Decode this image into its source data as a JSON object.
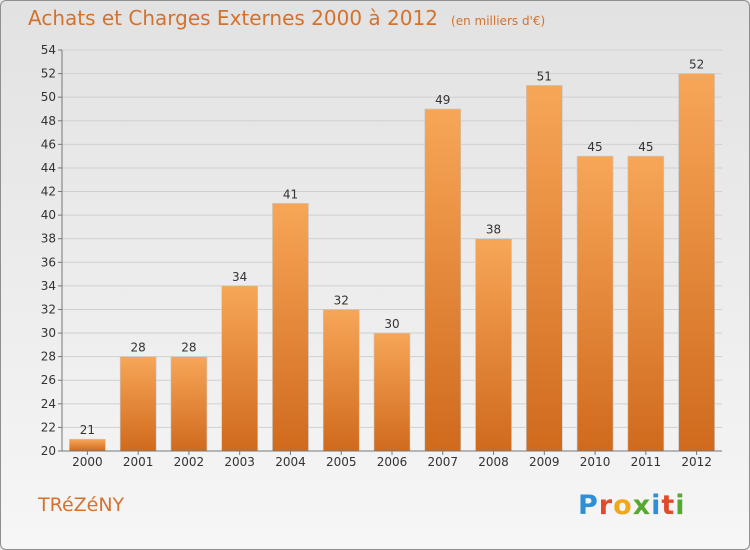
{
  "header": {
    "title": "Achats et Charges Externes 2000 à 2012",
    "unit": "(en milliers d'€)"
  },
  "footer": {
    "commune": "TRéZéNY",
    "brand": "Proxiti",
    "brand_colors": [
      "#2f8fd6",
      "#e14a2a",
      "#f0a818",
      "#57a832",
      "#2f8fd6",
      "#e14a2a",
      "#57a832"
    ]
  },
  "colors": {
    "accent": "#d4722c",
    "bar_top": "#f7a658",
    "bar_bottom": "#d06a1d",
    "grid": "#d0d0d0",
    "axis": "#777777"
  },
  "chart_data": {
    "type": "bar",
    "title": "Achats et Charges Externes 2000 à 2012",
    "subtitle": "(en milliers d'€)",
    "xlabel": "",
    "ylabel": "",
    "categories": [
      "2000",
      "2001",
      "2002",
      "2003",
      "2004",
      "2005",
      "2006",
      "2007",
      "2008",
      "2009",
      "2010",
      "2011",
      "2012"
    ],
    "values": [
      21,
      28,
      28,
      34,
      41,
      32,
      30,
      49,
      38,
      51,
      45,
      45,
      52
    ],
    "data_labels": [
      "21",
      "28",
      "28",
      "34",
      "41",
      "32",
      "30",
      "49",
      "38",
      "51",
      "45",
      "45",
      "52"
    ],
    "ylim": [
      20,
      54
    ],
    "yticks": [
      20,
      22,
      24,
      26,
      28,
      30,
      32,
      34,
      36,
      38,
      40,
      42,
      44,
      46,
      48,
      50,
      52,
      54
    ],
    "grid": true,
    "legend": "none"
  }
}
